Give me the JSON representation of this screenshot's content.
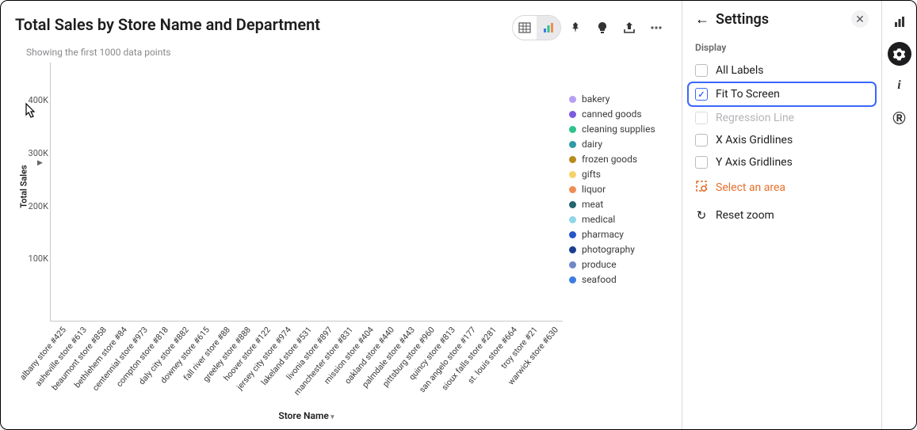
{
  "header": {
    "title": "Total Sales by Store Name and Department",
    "subtitle": "Showing the first 1000 data points"
  },
  "toolbar": {
    "view_table_icon": "table-icon",
    "view_chart_icon": "chart-icon",
    "pin_icon": "pin-icon",
    "insight_icon": "bulb-icon",
    "share_icon": "share-icon",
    "more_icon": "more-icon",
    "active_view": "chart"
  },
  "chart": {
    "type": "bar-stacked",
    "yaxis": {
      "title": "Total Sales",
      "ylim": [
        0,
        420000
      ],
      "ticks": [
        {
          "value": 100000,
          "label": "100K"
        },
        {
          "value": 200000,
          "label": "200K"
        },
        {
          "value": 300000,
          "label": "300K"
        },
        {
          "value": 400000,
          "label": "400K"
        }
      ],
      "grid_color": "#e4e4e6"
    },
    "xaxis": {
      "title": "Store Name",
      "tick_every": 3,
      "labels": [
        "albany store #425",
        "asheville store #613",
        "beaumont store #858",
        "bethlehem store #84",
        "centennial store #973",
        "compton store #818",
        "daly city store #882",
        "downey store #615",
        "fall river store #88",
        "greeley store #888",
        "hoover store #122",
        "jersey city store #974",
        "lakeland store #531",
        "livonia store #897",
        "manchester store #831",
        "mission store #404",
        "oakland store #440",
        "palmdale store #443",
        "pittsburg store #960",
        "quincy store #813",
        "san angelo store #177",
        "sioux falls store #281",
        "st. louis store #664",
        "troy store #21",
        "warwick store #630"
      ]
    },
    "series": [
      {
        "key": "bakery",
        "label": "bakery",
        "color": "#b79ff5"
      },
      {
        "key": "canned_goods",
        "label": "canned goods",
        "color": "#7b5be0"
      },
      {
        "key": "cleaning_supplies",
        "label": "cleaning supplies",
        "color": "#2fc28c"
      },
      {
        "key": "dairy",
        "label": "dairy",
        "color": "#2e9ba6"
      },
      {
        "key": "frozen_goods",
        "label": "frozen goods",
        "color": "#b78b1e"
      },
      {
        "key": "gifts",
        "label": "gifts",
        "color": "#f5d36a"
      },
      {
        "key": "liquor",
        "label": "liquor",
        "color": "#ef8d56"
      },
      {
        "key": "meat",
        "label": "meat",
        "color": "#24646e"
      },
      {
        "key": "medical",
        "label": "medical",
        "color": "#8fd6e8"
      },
      {
        "key": "pharmacy",
        "label": "pharmacy",
        "color": "#2556c9"
      },
      {
        "key": "photography",
        "label": "photography",
        "color": "#1a3e8f"
      },
      {
        "key": "produce",
        "label": "produce",
        "color": "#6f88c7"
      },
      {
        "key": "seafood",
        "label": "seafood",
        "color": "#3d7de0"
      }
    ],
    "n_bars": 75,
    "random_seed": 7,
    "background_color": "#ffffff"
  },
  "legend_title": null,
  "settings_panel": {
    "title": "Settings",
    "group": "Display",
    "options": [
      {
        "key": "all_labels",
        "label": "All Labels",
        "checked": false,
        "disabled": false,
        "highlight": false
      },
      {
        "key": "fit_to_screen",
        "label": "Fit To Screen",
        "checked": true,
        "disabled": false,
        "highlight": true
      },
      {
        "key": "regression_line",
        "label": "Regression Line",
        "checked": false,
        "disabled": true,
        "highlight": false
      },
      {
        "key": "x_gridlines",
        "label": "X Axis Gridlines",
        "checked": false,
        "disabled": false,
        "highlight": false
      },
      {
        "key": "y_gridlines",
        "label": "Y Axis Gridlines",
        "checked": false,
        "disabled": false,
        "highlight": false
      }
    ],
    "actions": {
      "select_area": "Select an area",
      "reset_zoom": "Reset zoom"
    }
  },
  "rail": {
    "chart_icon": "chart",
    "settings_icon": "gear",
    "info_icon": "info",
    "r_icon": "r",
    "active": "settings"
  }
}
